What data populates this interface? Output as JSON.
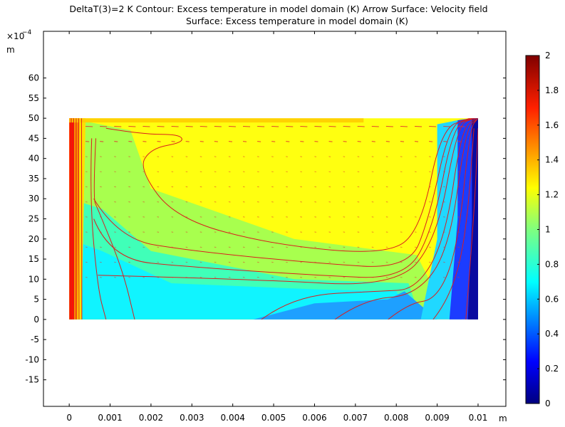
{
  "chart_data": {
    "type": "heatmap",
    "title_line1": "DeltaT(3)=2 K  Contour: Excess temperature in model domain (K)  Arrow Surface: Velocity field",
    "title_line2": "Surface: Excess temperature in model domain (K)",
    "x_unit": "m",
    "y_unit": "m",
    "y_scale_label": "×10",
    "y_scale_exp": "−4",
    "xlim": [
      -0.00063,
      0.01068
    ],
    "ylim": [
      -21.6,
      71.6
    ],
    "x_ticks": [
      0,
      0.001,
      0.002,
      0.003,
      0.004,
      0.005,
      0.006,
      0.007,
      0.008,
      0.009,
      0.01
    ],
    "x_tick_labels": [
      "0",
      "0.001",
      "0.002",
      "0.003",
      "0.004",
      "0.005",
      "0.006",
      "0.007",
      "0.008",
      "0.009",
      "0.01"
    ],
    "y_ticks": [
      -15,
      -10,
      -5,
      0,
      5,
      10,
      15,
      20,
      25,
      30,
      35,
      40,
      45,
      50,
      55,
      60
    ],
    "y_tick_labels": [
      "-15",
      "-10",
      "-5",
      "0",
      "5",
      "10",
      "15",
      "20",
      "25",
      "30",
      "35",
      "40",
      "45",
      "50",
      "55",
      "60"
    ],
    "domain": {
      "x": [
        0,
        0.01
      ],
      "y": [
        0,
        50
      ]
    },
    "colorbar": {
      "range": [
        0,
        2
      ],
      "ticks": [
        0,
        0.2,
        0.4,
        0.6,
        0.8,
        1,
        1.2,
        1.4,
        1.6,
        1.8,
        2
      ],
      "tick_labels": [
        "0",
        "0.2",
        "0.4",
        "0.6",
        "0.8",
        "1",
        "1.2",
        "1.4",
        "1.6",
        "1.8",
        "2"
      ],
      "colormap": "rainbow"
    },
    "contour_color": "#d81e1e",
    "arrow_color": "#e03030"
  }
}
